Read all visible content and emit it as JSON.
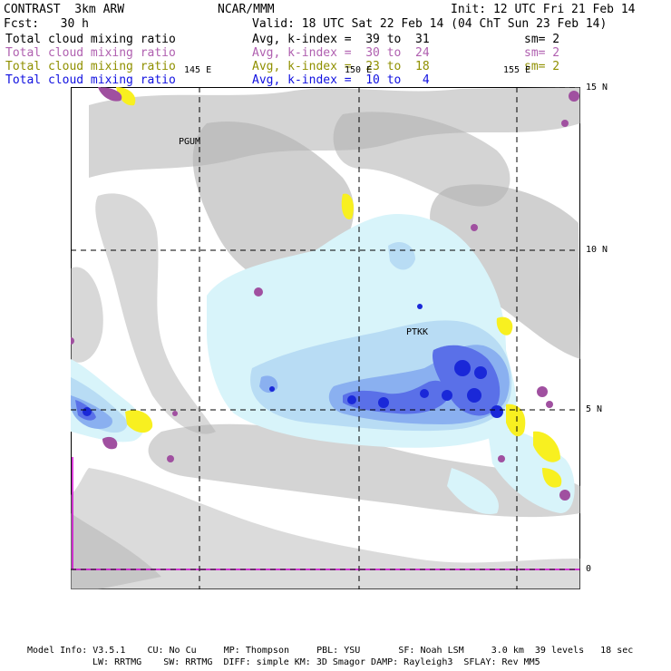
{
  "header": {
    "model_title": "CONTRAST  3km ARW",
    "center_title": "NCAR/MMM",
    "init_text": "Init: 12 UTC Fri 21 Feb 14",
    "fcst_text": "Fcst:   30 h",
    "valid_text": "Valid: 18 UTC Sat 22 Feb 14 (04 ChT Sun 23 Feb 14)"
  },
  "legend": [
    {
      "field": "Total cloud mixing ratio",
      "range": "Avg, k-index =  39 to  31",
      "smooth": "sm= 2",
      "color": "#000000"
    },
    {
      "field": "Total cloud mixing ratio",
      "range": "Avg, k-index =  30 to  24",
      "smooth": "sm= 2",
      "color": "#b060b0"
    },
    {
      "field": "Total cloud mixing ratio",
      "range": "Avg, k-index =  23 to  18",
      "smooth": "sm= 2",
      "color": "#909000"
    },
    {
      "field": "Total cloud mixing ratio",
      "range": "Avg, k-index =  10 to   4",
      "smooth": "",
      "color": "#1010e0"
    }
  ],
  "map": {
    "longitude_labels": [
      "145 E",
      "150 E",
      "155 E"
    ],
    "latitude_labels": [
      "15 N",
      "10 N",
      "5 N",
      "0"
    ],
    "stations": [
      {
        "name": "PGUM"
      },
      {
        "name": "PTKK"
      }
    ],
    "colors": {
      "gray_cloud": "#a8a8a8",
      "light_cyan": "#d8f4fa",
      "pale_blue": "#b8dcf4",
      "mid_blue": "#8ab0f0",
      "blue": "#5a70e8",
      "deep_blue": "#1a28d8",
      "yellow": "#f8f020",
      "purple": "#a050a0",
      "magenta_line": "#d000d0"
    }
  },
  "footer": {
    "line1": "Model Info: V3.5.1    CU: No Cu     MP: Thompson     PBL: YSU       SF: Noah LSM     3.0 km  39 levels   18 sec",
    "line2": "LW: RRTMG    SW: RRTMG  DIFF: simple KM: 3D Smagor DAMP: Rayleigh3  SFLAY: Rev MM5"
  }
}
